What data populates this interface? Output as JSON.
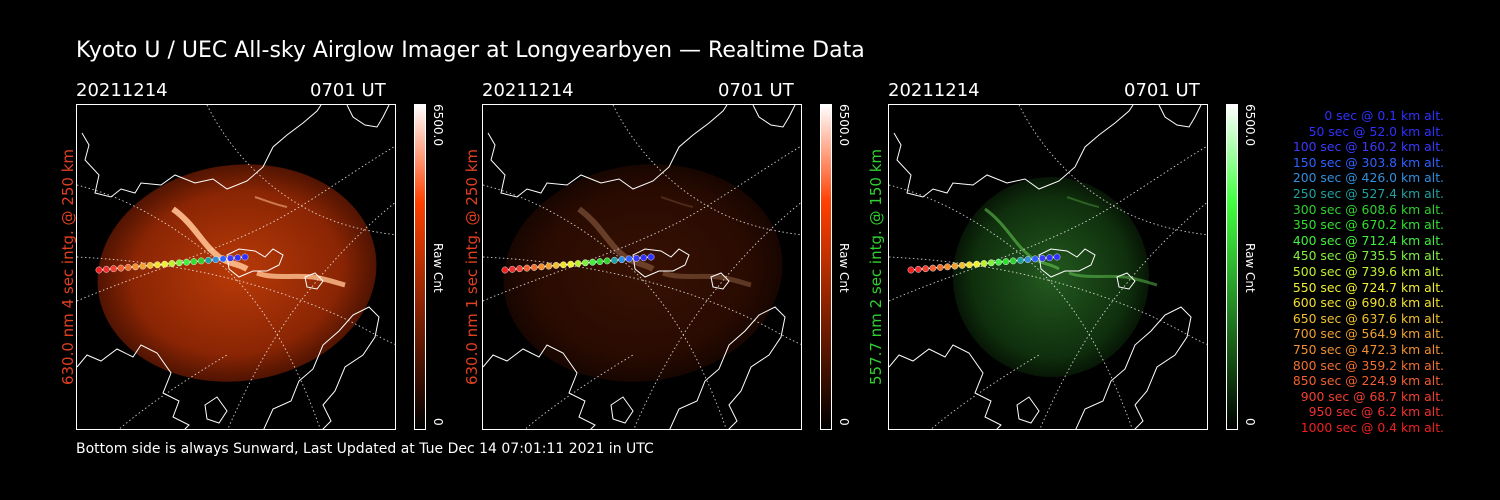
{
  "title": "Kyoto U / UEC All-sky Airglow Imager at Longyearbyen — Realtime Data",
  "panels": [
    {
      "date": "20211214",
      "time": "0701 UT",
      "ylabel": "630.0 nm 4 sec intg. @ 250 km",
      "label_color": "#e04020",
      "colorbar_max": "6500.0",
      "colorbar_label": "Raw Cnt",
      "colorbar_min": "0",
      "colorbar_color": "#ff4000",
      "glow_intensity": 1.0
    },
    {
      "date": "20211214",
      "time": "0701 UT",
      "ylabel": "630.0 nm 1 sec intg. @ 250 km",
      "label_color": "#e04020",
      "colorbar_max": "6500.0",
      "colorbar_label": "Raw Cnt",
      "colorbar_min": "0",
      "colorbar_color": "#ff4000",
      "glow_intensity": 0.3
    },
    {
      "date": "20211214",
      "time": "0701 UT",
      "ylabel": "557.7 nm 2 sec intg. @ 150 km",
      "label_color": "#30d030",
      "colorbar_max": "6500.0",
      "colorbar_label": "Raw Cnt",
      "colorbar_min": "0",
      "colorbar_color": "#40ff40",
      "glow_intensity": 0.45
    }
  ],
  "footer": "Bottom side is always Sunward, Last Updated at Tue Dec 14 07:01:11 2021 in UTC",
  "legend": [
    {
      "text": "0 sec @   0.1 km alt.",
      "color": "#3030ff"
    },
    {
      "text": "50 sec @  52.0 km alt.",
      "color": "#3030ff"
    },
    {
      "text": "100 sec @ 160.2 km alt.",
      "color": "#3a3aff"
    },
    {
      "text": "150 sec @ 303.8 km alt.",
      "color": "#3060ff"
    },
    {
      "text": "200 sec @ 426.0 km alt.",
      "color": "#3090e0"
    },
    {
      "text": "250 sec @ 527.4 km alt.",
      "color": "#20a0a0"
    },
    {
      "text": "300 sec @ 608.6 km alt.",
      "color": "#30d030"
    },
    {
      "text": "350 sec @ 670.2 km alt.",
      "color": "#30e030"
    },
    {
      "text": "400 sec @ 712.4 km alt.",
      "color": "#40f040"
    },
    {
      "text": "450 sec @ 735.5 km alt.",
      "color": "#80f040"
    },
    {
      "text": "500 sec @ 739.6 km alt.",
      "color": "#c0f030"
    },
    {
      "text": "550 sec @ 724.7 km alt.",
      "color": "#f0f030"
    },
    {
      "text": "600 sec @ 690.8 km alt.",
      "color": "#f0e030"
    },
    {
      "text": "650 sec @ 637.6 km alt.",
      "color": "#f0c030"
    },
    {
      "text": "700 sec @ 564.9 km alt.",
      "color": "#f0a030"
    },
    {
      "text": "750 sec @ 472.3 km alt.",
      "color": "#f09030"
    },
    {
      "text": "800 sec @ 359.2 km alt.",
      "color": "#f07030"
    },
    {
      "text": "850 sec @ 224.9 km alt.",
      "color": "#f06030"
    },
    {
      "text": "900 sec @  68.7 km alt.",
      "color": "#f04030"
    },
    {
      "text": "950 sec @   6.2 km alt.",
      "color": "#f03030"
    },
    {
      "text": "1000 sec @   0.4 km alt.",
      "color": "#f02020"
    }
  ]
}
